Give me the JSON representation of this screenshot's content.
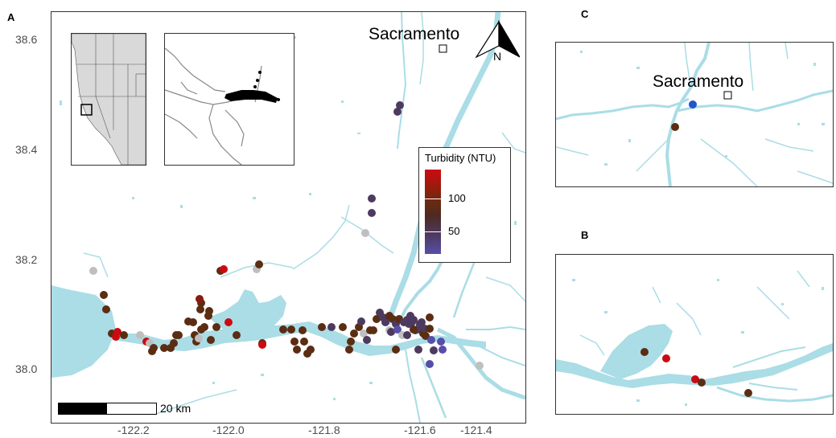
{
  "panels": {
    "a_label": "A",
    "b_label": "B",
    "c_label": "C"
  },
  "axes": {
    "y_ticks": [
      "38.6",
      "38.4",
      "38.2",
      "38.0"
    ],
    "x_ticks": [
      "-122.2",
      "-122.0",
      "-121.8",
      "-121.6",
      "-121.4"
    ]
  },
  "city": {
    "name": "Sacramento",
    "name_inset_c": "Sacramento"
  },
  "north_arrow": {
    "label": "N"
  },
  "legend": {
    "title": "Turbidity (NTU)",
    "labels": [
      "100",
      "50"
    ],
    "colors": {
      "high": "#cc0a12",
      "mid": "#5b2d12",
      "low": "#574ea8"
    }
  },
  "scale_bar": {
    "label": "20 km"
  },
  "colors": {
    "water": "#aadde6",
    "no_data": "#bfbfbf",
    "land_inset": "#d9d9d9",
    "frame": "#333333",
    "site_blue": "#2255cc"
  }
}
